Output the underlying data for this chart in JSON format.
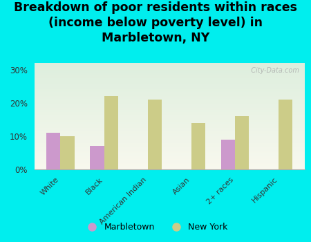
{
  "title": "Breakdown of poor residents within races\n(income below poverty level) in\nMarbletown, NY",
  "categories": [
    "White",
    "Black",
    "American Indian",
    "Asian",
    "2+ races",
    "Hispanic"
  ],
  "marbletown": [
    11.0,
    7.0,
    0.0,
    0.0,
    9.0,
    0.0
  ],
  "new_york": [
    10.0,
    22.0,
    21.0,
    14.0,
    16.0,
    21.0
  ],
  "marbletown_color": "#cc99cc",
  "new_york_color": "#cccc88",
  "bg_color": "#00eeee",
  "plot_bg_top": "#f8f8ee",
  "plot_bg_bottom": "#ddeedd",
  "ylim": [
    0,
    32
  ],
  "yticks": [
    0,
    10,
    20,
    30
  ],
  "ytick_labels": [
    "0%",
    "10%",
    "20%",
    "30%"
  ],
  "title_fontsize": 12.5,
  "bar_width": 0.32,
  "legend_marbletown": "Marbletown",
  "legend_new_york": "New York",
  "watermark": "  City-Data.com"
}
